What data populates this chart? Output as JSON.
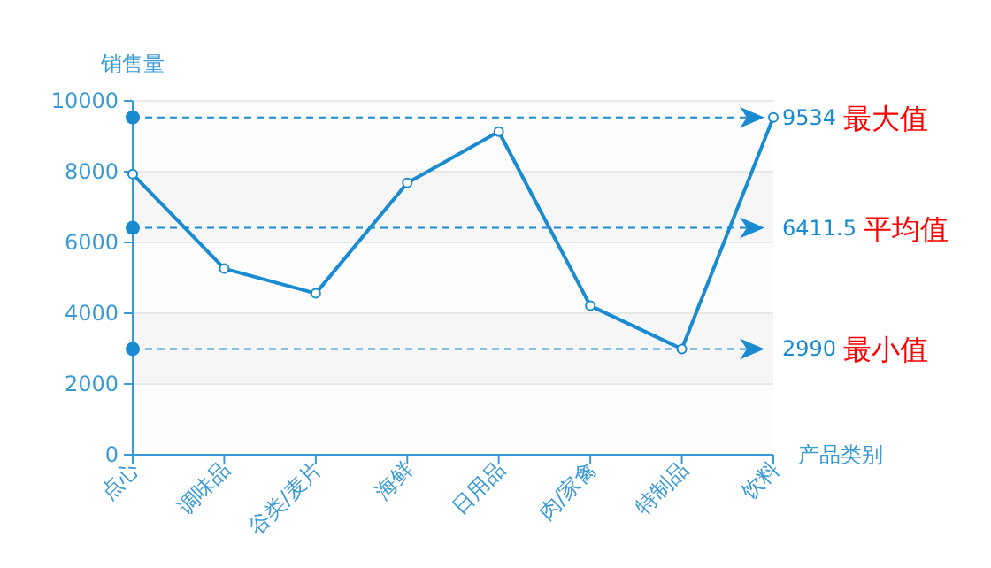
{
  "chart_data": {
    "type": "line",
    "ylabel": "销售量",
    "xlabel": "产品类别",
    "categories": [
      "点心",
      "调味品",
      "谷类/麦片",
      "海鲜",
      "日用品",
      "肉/家禽",
      "特制品",
      "饮料"
    ],
    "series": [
      {
        "color": "#1a8bd0",
        "values": [
          7930,
          5260,
          4560,
          7680,
          9130,
          4210,
          2990,
          9534
        ]
      }
    ],
    "ylim": [
      0,
      10000
    ],
    "yticks": [
      0,
      2000,
      4000,
      6000,
      8000,
      10000
    ],
    "grid": "y",
    "marker": "circle",
    "line_style": "solid",
    "ref_lines": [
      {
        "axis": "y",
        "value": 9534,
        "label": "9534 最大值",
        "color": "#1a8bd0",
        "line_style": "dashed"
      },
      {
        "axis": "y",
        "value": 6411.5,
        "label": "6411.5 平均值",
        "color": "#1a8bd0",
        "line_style": "dashed"
      },
      {
        "axis": "y",
        "value": 2990,
        "label": "2990 最小值",
        "color": "#1a8bd0",
        "line_style": "dashed"
      }
    ]
  }
}
